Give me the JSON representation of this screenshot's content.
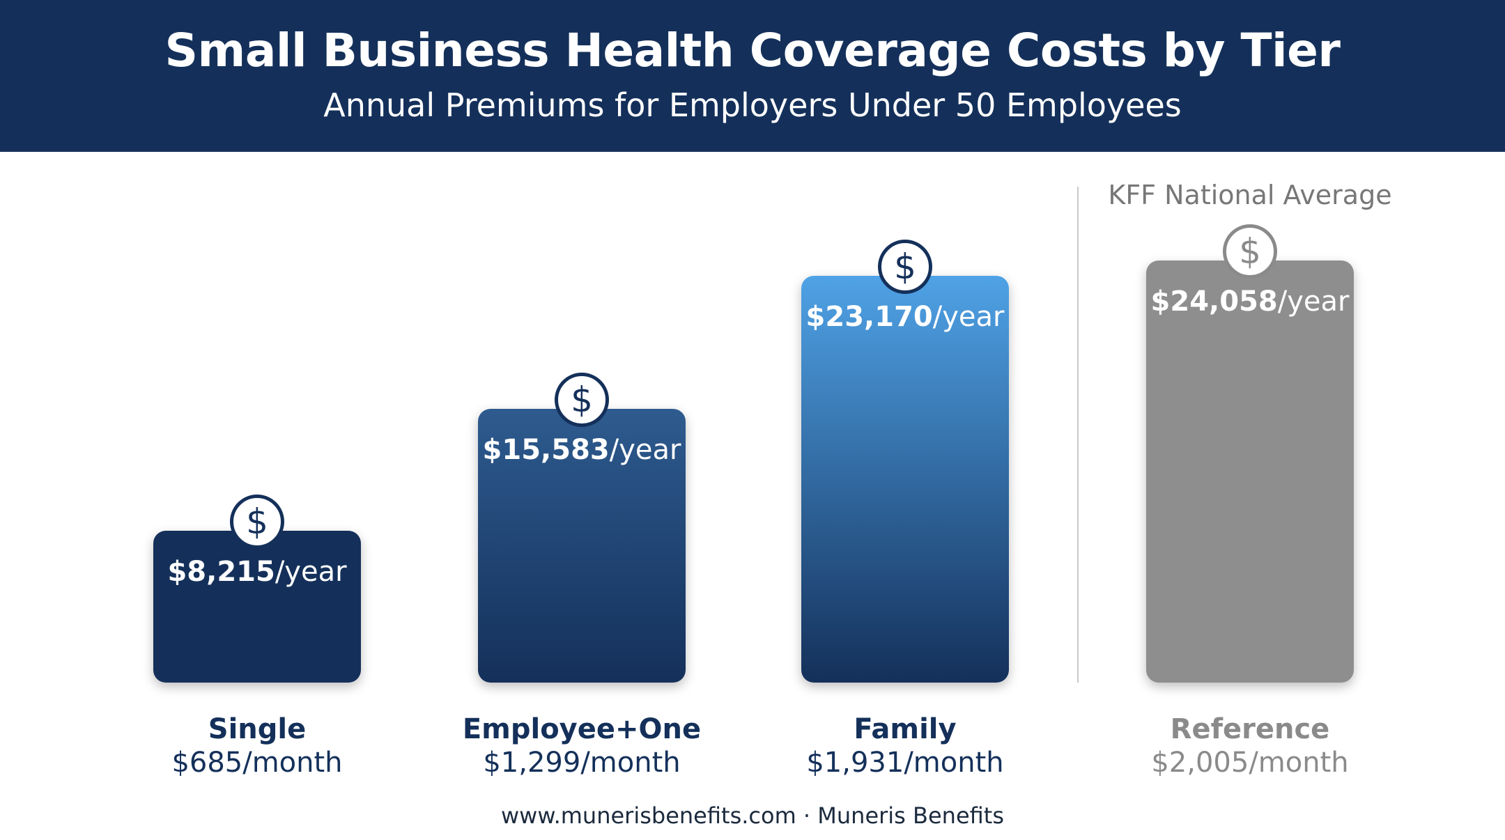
{
  "header": {
    "title": "Small Business Health Coverage Costs by Tier",
    "subtitle": "Annual Premiums for Employers Under 50 Employees"
  },
  "chart_data": {
    "type": "bar",
    "title": "Small Business Health Coverage Costs by Tier",
    "subtitle": "Annual Premiums for Employers Under 50 Employees",
    "categories": [
      "Single",
      "Employee+One",
      "Family",
      "Reference"
    ],
    "values": [
      8215,
      15583,
      23170,
      24058
    ],
    "value_labels": [
      "$8,215",
      "$15,583",
      "$23,170",
      "$24,058"
    ],
    "value_unit": "/year",
    "monthly_labels": [
      "$685/month",
      "$1,299/month",
      "$1,931/month",
      "$2,005/month"
    ],
    "reference_heading": "KFF National Average",
    "colors": {
      "single": "#14305a",
      "employee_one_top": "#2e5b8f",
      "employee_one_bottom": "#14305a",
      "family_top": "#4fa2e6",
      "family_bottom": "#14305a",
      "reference": "#8e8e8e",
      "reference_label": "#8a8a8a"
    },
    "icons": [
      "dollar-coin-icon",
      "dollar-coin-icon",
      "dollar-coin-icon",
      "dollar-coin-icon"
    ],
    "ylim": [
      0,
      26000
    ],
    "grid": false,
    "legend": "none"
  },
  "footer": {
    "text": "www.munerisbenefits.com · Muneris Benefits"
  }
}
